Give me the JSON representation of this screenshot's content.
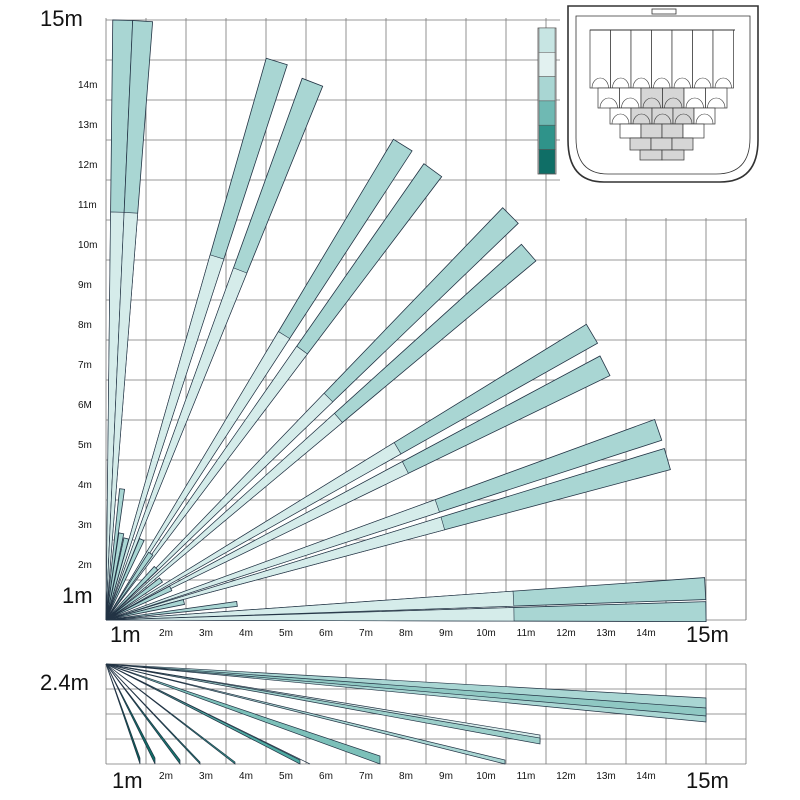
{
  "top_view": {
    "corner_max_label": "15m",
    "origin_y_label": "1m",
    "origin_x_label": "1m",
    "x_end_label": "15m",
    "y_ticks": [
      "2m",
      "3m",
      "4m",
      "5m",
      "6M",
      "7m",
      "8m",
      "9m",
      "10m",
      "11m",
      "12m",
      "13m",
      "14m"
    ],
    "x_ticks": [
      "2m",
      "3m",
      "4m",
      "5m",
      "6m",
      "7m",
      "8m",
      "9m",
      "10m",
      "11m",
      "12m",
      "13m",
      "14m"
    ],
    "range_m": 15
  },
  "side_view": {
    "height_label": "2.4m",
    "origin_x_label": "1m",
    "x_end_label": "15m",
    "x_ticks": [
      "2m",
      "3m",
      "4m",
      "5m",
      "6m",
      "7m",
      "8m",
      "9m",
      "10m",
      "11m",
      "12m",
      "13m",
      "14m"
    ],
    "height_m": 2.4
  },
  "colors": {
    "zone_fill": "#a9d6d3",
    "zone_fill_light": "#d5ecea",
    "zone_fill_dark": "#0f6e66",
    "legend": [
      "#c7e5e3",
      "#e2f1f0",
      "#a9d6d3",
      "#6fb9b3",
      "#2f938a",
      "#0f6e66"
    ]
  },
  "inset": {
    "name": "sensor-lens-pattern"
  }
}
